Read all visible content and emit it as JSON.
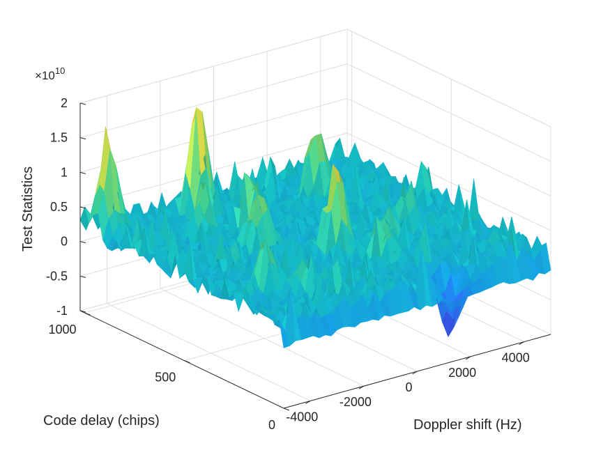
{
  "chart_data": {
    "type": "surface",
    "title": "",
    "xlabel": "Doppler shift (Hz)",
    "ylabel": "Code delay (chips)",
    "zlabel": "Test Statistics",
    "z_multiplier_label": "×10",
    "z_multiplier_exponent": "10",
    "xlim": [
      -5000,
      5000
    ],
    "ylim": [
      0,
      1023
    ],
    "zlim": [
      -1,
      2
    ],
    "xticks": [
      -4000,
      -2000,
      0,
      2000,
      4000
    ],
    "xtick_labels": [
      "-4000",
      "-2000",
      "0",
      "2000",
      "4000"
    ],
    "yticks": [
      0,
      500,
      1000
    ],
    "ytick_labels": [
      "0",
      "500",
      "1000"
    ],
    "zticks": [
      -1,
      -0.5,
      0,
      0.5,
      1,
      1.5,
      2
    ],
    "ztick_labels": [
      "-1",
      "-0.5",
      "0",
      "0.5",
      "1",
      "1.5",
      "2"
    ],
    "z_units": "x 1e10",
    "colormap": "parula",
    "grid": true,
    "baseline_level": 0.15,
    "noise_amplitude": 0.28,
    "peaks": [
      {
        "x": -4500,
        "y": 950,
        "z": 1.6
      },
      {
        "x": -1500,
        "y": 900,
        "z": 1.75
      },
      {
        "x": 2200,
        "y": 800,
        "z": 1.25
      },
      {
        "x": -1800,
        "y": 550,
        "z": 1.15
      },
      {
        "x": 0,
        "y": 400,
        "z": 1.5
      },
      {
        "x": -3500,
        "y": 300,
        "z": 0.85
      },
      {
        "x": -2400,
        "y": 750,
        "z": 0.8
      },
      {
        "x": -900,
        "y": 700,
        "z": 0.85
      },
      {
        "x": 1500,
        "y": 350,
        "z": 0.7
      },
      {
        "x": 2800,
        "y": 450,
        "z": 0.6
      },
      {
        "x": -2700,
        "y": 200,
        "z": 0.55
      },
      {
        "x": 600,
        "y": 250,
        "z": 0.65
      }
    ],
    "trough": {
      "x": 1700,
      "y": 60,
      "z": -0.7
    }
  }
}
